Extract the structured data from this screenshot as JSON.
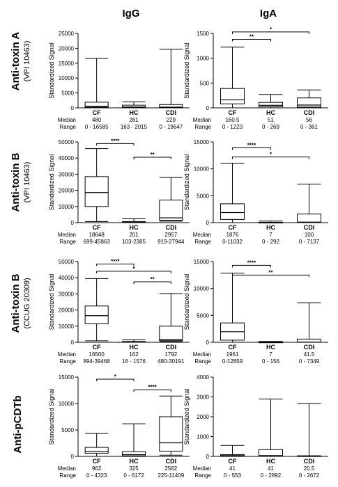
{
  "columns": [
    "IgG",
    "IgA"
  ],
  "ylabel": "Standardized Signal",
  "stat_labels": {
    "median": "Median",
    "range": "Range"
  },
  "rows": [
    {
      "title": "Anti-toxin A",
      "subtitle": "(VPI 10463)"
    },
    {
      "title": "Anti-toxin B",
      "subtitle": "(VPI 10463)"
    },
    {
      "title": "Anti-toxin B",
      "subtitle": "(CCUG 20309)"
    },
    {
      "title": "Anti-pCDTb",
      "subtitle": ""
    }
  ],
  "chart_data": [
    {
      "type": "box",
      "row": 0,
      "column": "IgG",
      "categories": [
        "CF",
        "HC",
        "CDI"
      ],
      "ylabel": "Standardized Signal",
      "ylim": [
        0,
        25000
      ],
      "yticks": [
        0,
        5000,
        10000,
        15000,
        20000,
        25000
      ],
      "ytick_labels": [
        "0",
        "5000",
        "10000",
        "15000",
        "20000",
        "25000"
      ],
      "boxes": [
        {
          "whisker_low": 0,
          "q1": 250,
          "median": 480,
          "q3": 1900,
          "whisker_high": 16585
        },
        {
          "whisker_low": 163,
          "q1": 180,
          "median": 281,
          "q3": 900,
          "whisker_high": 2015
        },
        {
          "whisker_low": 0,
          "q1": 80,
          "median": 229,
          "q3": 1100,
          "whisker_high": 19647
        }
      ],
      "medians": [
        "480",
        "281",
        "229"
      ],
      "ranges": [
        "0 - 16585",
        "163 - 2015",
        "0 - 19647"
      ],
      "significance": []
    },
    {
      "type": "box",
      "row": 0,
      "column": "IgA",
      "categories": [
        "CF",
        "HC",
        "CDI"
      ],
      "ylabel": "Standardized Signal",
      "ylim": [
        0,
        1500
      ],
      "yticks": [
        0,
        500,
        1000,
        1500
      ],
      "ytick_labels": [
        "0",
        "500",
        "1000",
        "1500"
      ],
      "boxes": [
        {
          "whisker_low": 0,
          "q1": 80,
          "median": 160.5,
          "q3": 390,
          "whisker_high": 1223
        },
        {
          "whisker_low": 0,
          "q1": 20,
          "median": 51,
          "q3": 110,
          "whisker_high": 269
        },
        {
          "whisker_low": 0,
          "q1": 15,
          "median": 56,
          "q3": 200,
          "whisker_high": 361
        }
      ],
      "medians": [
        "160.5",
        "51",
        "56"
      ],
      "ranges": [
        "0 - 1223",
        "0 - 269",
        "0 - 361"
      ],
      "significance": [
        {
          "from": 0,
          "to": 1,
          "label": "**",
          "y": 1380
        },
        {
          "from": 0,
          "to": 2,
          "label": "*",
          "y": 1530
        }
      ]
    },
    {
      "type": "box",
      "row": 1,
      "column": "IgG",
      "categories": [
        "CF",
        "HC",
        "CDI"
      ],
      "ylabel": "Standardized Signal",
      "ylim": [
        0,
        50000
      ],
      "yticks": [
        0,
        10000,
        20000,
        30000,
        40000,
        50000
      ],
      "ytick_labels": [
        "0",
        "10000",
        "20000",
        "30000",
        "40000",
        "50000"
      ],
      "boxes": [
        {
          "whisker_low": 699,
          "q1": 10000,
          "median": 18648,
          "q3": 28500,
          "whisker_high": 45863
        },
        {
          "whisker_low": 103,
          "q1": 110,
          "median": 201,
          "q3": 700,
          "whisker_high": 2385
        },
        {
          "whisker_low": 919,
          "q1": 1500,
          "median": 2957,
          "q3": 14000,
          "whisker_high": 27944
        }
      ],
      "medians": [
        "18648",
        "201",
        "2957"
      ],
      "ranges": [
        "699-45863",
        "103-2385",
        "919-27944"
      ],
      "significance": [
        {
          "from": 0,
          "to": 1,
          "label": "****",
          "y": 49000
        },
        {
          "from": 1,
          "to": 2,
          "label": "**",
          "y": 40500
        }
      ]
    },
    {
      "type": "box",
      "row": 1,
      "column": "IgA",
      "categories": [
        "CF",
        "HC",
        "CDI"
      ],
      "ylabel": "Standardized Signal",
      "ylim": [
        0,
        15000
      ],
      "yticks": [
        0,
        5000,
        10000,
        15000
      ],
      "ytick_labels": [
        "0",
        "5000",
        "10000",
        "15000"
      ],
      "boxes": [
        {
          "whisker_low": 0,
          "q1": 600,
          "median": 1876,
          "q3": 3500,
          "whisker_high": 11032
        },
        {
          "whisker_low": 0,
          "q1": 3,
          "median": 7,
          "q3": 60,
          "whisker_high": 292
        },
        {
          "whisker_low": 0,
          "q1": 10,
          "median": 100,
          "q3": 1600,
          "whisker_high": 7137
        }
      ],
      "medians": [
        "1876",
        "7",
        "100"
      ],
      "ranges": [
        "0-11032",
        "0 - 292",
        "0 - 7137"
      ],
      "significance": [
        {
          "from": 0,
          "to": 1,
          "label": "****",
          "y": 13900
        },
        {
          "from": 0,
          "to": 2,
          "label": "*",
          "y": 12200
        }
      ]
    },
    {
      "type": "box",
      "row": 2,
      "column": "IgG",
      "categories": [
        "CF",
        "HC",
        "CDI"
      ],
      "ylabel": "Standardized Signal",
      "ylim": [
        0,
        50000
      ],
      "yticks": [
        0,
        10000,
        20000,
        30000,
        40000,
        50000
      ],
      "ytick_labels": [
        "0",
        "10000",
        "20000",
        "30000",
        "40000",
        "50000"
      ],
      "boxes": [
        {
          "whisker_low": 894,
          "q1": 11500,
          "median": 16500,
          "q3": 22500,
          "whisker_high": 39468
        },
        {
          "whisker_low": 16,
          "q1": 60,
          "median": 162,
          "q3": 500,
          "whisker_high": 1576
        },
        {
          "whisker_low": 480,
          "q1": 1000,
          "median": 1792,
          "q3": 10000,
          "whisker_high": 30191
        }
      ],
      "medians": [
        "16500",
        "162",
        "1792"
      ],
      "ranges": [
        "894-39468",
        "16 - 1576",
        "480-30191"
      ],
      "significance": [
        {
          "from": 0,
          "to": 1,
          "label": "****",
          "y": 48500
        },
        {
          "from": 0,
          "to": 2,
          "label": "*",
          "y": 44000
        },
        {
          "from": 1,
          "to": 2,
          "label": "**",
          "y": 37500
        }
      ]
    },
    {
      "type": "box",
      "row": 2,
      "column": "IgA",
      "categories": [
        "CF",
        "HC",
        "CDI"
      ],
      "ylabel": "Standardized Signal",
      "ylim": [
        0,
        15000
      ],
      "yticks": [
        0,
        5000,
        10000,
        15000
      ],
      "ytick_labels": [
        "0",
        "5000",
        "10000",
        "15000"
      ],
      "boxes": [
        {
          "whisker_low": 0,
          "q1": 400,
          "median": 1961,
          "q3": 3600,
          "whisker_high": 12859
        },
        {
          "whisker_low": 0,
          "q1": 2,
          "median": 7,
          "q3": 40,
          "whisker_high": 156
        },
        {
          "whisker_low": 0,
          "q1": 5,
          "median": 41.5,
          "q3": 600,
          "whisker_high": 7349
        }
      ],
      "medians": [
        "1961",
        "7",
        "41.5"
      ],
      "ranges": [
        "0-12859",
        "0 - 156",
        "0 - 7349"
      ],
      "significance": [
        {
          "from": 0,
          "to": 1,
          "label": "****",
          "y": 14300
        },
        {
          "from": 0,
          "to": 2,
          "label": "**",
          "y": 12500
        }
      ]
    },
    {
      "type": "box",
      "row": 3,
      "column": "IgG",
      "categories": [
        "CF",
        "HC",
        "CDI"
      ],
      "ylabel": "Standardized Signal",
      "ylim": [
        0,
        15000
      ],
      "yticks": [
        0,
        5000,
        10000,
        15000
      ],
      "ytick_labels": [
        "0",
        "5000",
        "10000",
        "15000"
      ],
      "boxes": [
        {
          "whisker_low": 0,
          "q1": 600,
          "median": 962,
          "q3": 1700,
          "whisker_high": 4323
        },
        {
          "whisker_low": 0,
          "q1": 100,
          "median": 325,
          "q3": 900,
          "whisker_high": 6172
        },
        {
          "whisker_low": 225,
          "q1": 1000,
          "median": 2562,
          "q3": 7500,
          "whisker_high": 11409
        }
      ],
      "medians": [
        "962",
        "325",
        "2562"
      ],
      "ranges": [
        "0 - 4323",
        "0 - 6172",
        "225-11409"
      ],
      "significance": [
        {
          "from": 0,
          "to": 1,
          "label": "*",
          "y": 14600
        },
        {
          "from": 1,
          "to": 2,
          "label": "****",
          "y": 12600
        }
      ]
    },
    {
      "type": "box",
      "row": 3,
      "column": "IgA",
      "categories": [
        "CF",
        "HC",
        "CDI"
      ],
      "ylabel": "Standardized Signal",
      "ylim": [
        0,
        4000
      ],
      "yticks": [
        0,
        1000,
        2000,
        3000,
        4000
      ],
      "ytick_labels": [
        "0",
        "1000",
        "2000",
        "3000",
        "4000"
      ],
      "boxes": [
        {
          "whisker_low": 0,
          "q1": 10,
          "median": 41,
          "q3": 90,
          "whisker_high": 553
        },
        {
          "whisker_low": 0,
          "q1": 5,
          "median": 41,
          "q3": 340,
          "whisker_high": 2892
        },
        {
          "whisker_low": 0,
          "q1": 3,
          "median": 20.5,
          "q3": 30,
          "whisker_high": 2672
        }
      ],
      "medians": [
        "41",
        "41",
        "20.5"
      ],
      "ranges": [
        "0 - 553",
        "0 - 2892",
        "0 - 2672"
      ],
      "significance": []
    }
  ]
}
